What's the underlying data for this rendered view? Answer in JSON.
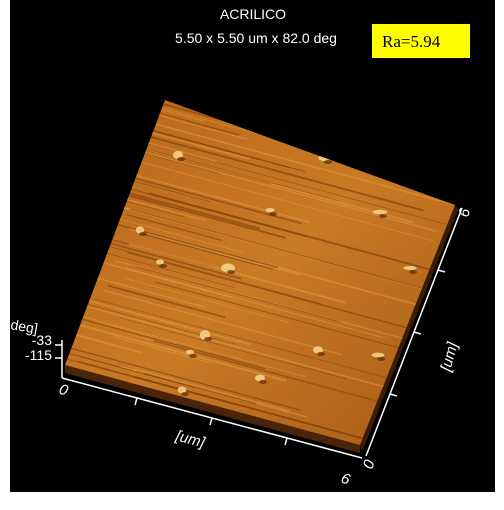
{
  "header": {
    "title": "ACRILICO",
    "subtitle": "5.50 x 5.50 um x 82.0 deg",
    "annotation": "Ra=5.94"
  },
  "z_axis": {
    "label": "deg]",
    "ticks": [
      "-33",
      "-115"
    ]
  },
  "x_axis": {
    "start": "0",
    "label": "[um]",
    "end": "6"
  },
  "y_axis": {
    "start": "0",
    "label": "[um]",
    "end": "6"
  }
}
